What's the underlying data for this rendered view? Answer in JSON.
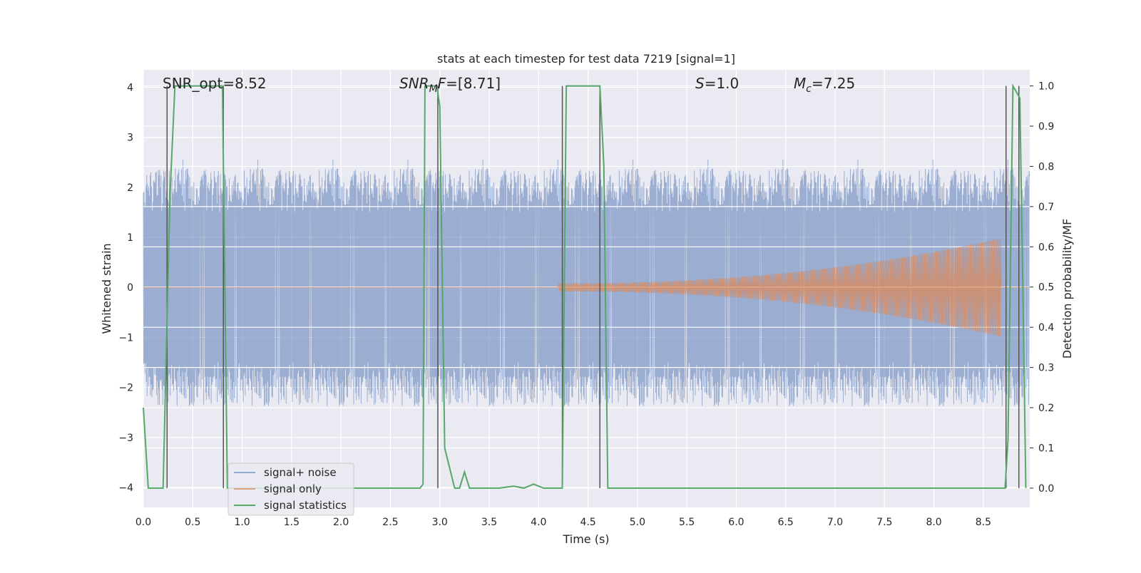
{
  "chart_data": {
    "type": "line",
    "title": "stats at each timestep for test data 7219 [signal=1]",
    "xlabel": "Time (s)",
    "ylabel": "Whitened strain",
    "y2label": "Detection probability/MF",
    "xlim": [
      0.0,
      8.97
    ],
    "ylim": [
      -4.4,
      4.35
    ],
    "y2lim": [
      -0.048,
      1.04
    ],
    "xticks": [
      "0.0",
      "0.5",
      "1.0",
      "1.5",
      "2.0",
      "2.5",
      "3.0",
      "3.5",
      "4.0",
      "4.5",
      "5.0",
      "5.5",
      "6.0",
      "6.5",
      "7.0",
      "7.5",
      "8.0",
      "8.5"
    ],
    "yticks": [
      "4",
      "3",
      "2",
      "1",
      "0",
      "−1",
      "−2",
      "−3",
      "−4"
    ],
    "y2ticks": [
      "1.0",
      "0.9",
      "0.8",
      "0.7",
      "0.6",
      "0.5",
      "0.4",
      "0.3",
      "0.2",
      "0.1",
      "0.0"
    ],
    "grid": true,
    "legend_position": "lower-left",
    "annotations": [
      {
        "text": "SNR_opt=8.52",
        "x": 0.2,
        "y": 4.0
      },
      {
        "text": "SNR_MF=[8.71]",
        "x": 2.6,
        "y": 4.0
      },
      {
        "text": "S=1.0",
        "x": 5.6,
        "y": 4.0
      },
      {
        "text": "M_c=7.25",
        "x": 6.6,
        "y": 4.0
      }
    ],
    "vertical_markers": [
      0.24,
      0.81,
      2.98,
      4.24,
      4.62,
      8.73,
      8.86
    ],
    "series": [
      {
        "name": "signal+ noise",
        "color": "#4c72b0",
        "axis": "left",
        "style": "noise",
        "amplitude": 2.5,
        "peak": 4.0
      },
      {
        "name": "signal only",
        "color": "#dd8452",
        "axis": "left",
        "style": "chirp",
        "t_start": 4.2,
        "t_merger": 8.68,
        "peak_amplitude": 0.9
      },
      {
        "name": "signal statistics",
        "color": "#55a868",
        "axis": "right",
        "x": [
          0.0,
          0.05,
          0.06,
          0.18,
          0.2,
          0.27,
          0.32,
          0.8,
          0.85,
          0.87,
          0.9,
          1.0,
          2.5,
          2.75,
          2.8,
          2.83,
          2.85,
          2.97,
          3.0,
          3.05,
          3.15,
          3.2,
          3.25,
          3.3,
          3.35,
          3.6,
          3.75,
          3.85,
          3.95,
          4.05,
          4.2,
          4.24,
          4.28,
          4.62,
          4.66,
          4.7,
          7.35,
          7.45,
          7.55,
          8.65,
          8.72,
          8.75,
          8.8,
          8.87,
          8.9,
          8.93
        ],
        "values": [
          0.2,
          0.0,
          0.0,
          0.0,
          0.0,
          0.73,
          1.0,
          1.0,
          0.0,
          0.0,
          0.0,
          0.0,
          0.0,
          0.0,
          0.0,
          0.01,
          1.0,
          1.0,
          0.95,
          0.1,
          0.0,
          0.0,
          0.04,
          0.0,
          0.0,
          0.0,
          0.005,
          0.0,
          0.01,
          0.0,
          0.0,
          0.0,
          1.0,
          1.0,
          0.8,
          0.0,
          0.0,
          0.0,
          0.0,
          0.0,
          0.0,
          0.12,
          1.0,
          0.97,
          0.5,
          0.0
        ]
      }
    ]
  },
  "legend": {
    "items": [
      {
        "label": "signal+ noise",
        "color": "#4c72b0"
      },
      {
        "label": "signal only",
        "color": "#dd8452"
      },
      {
        "label": "signal statistics",
        "color": "#55a868"
      }
    ]
  },
  "colors": {
    "axes_bg": "#eaeaf2",
    "grid": "#ffffff",
    "marker": "#555555"
  }
}
